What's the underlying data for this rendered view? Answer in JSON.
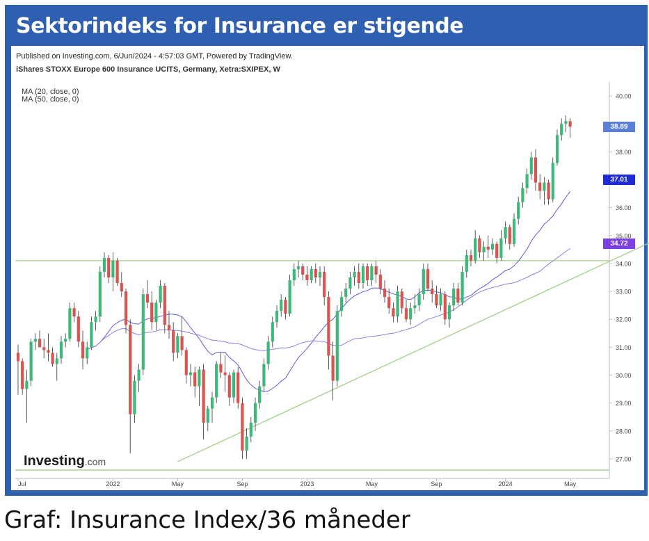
{
  "header": {
    "title": "Sektorindeks for Insurance er stigende"
  },
  "meta": {
    "published": "Published on Investing.com, 6/Jun/2024 - 4:57:03 GMT, Powered by TradingView.",
    "instrument": "iShares STOXX Europe 600 Insurance UCITS, Germany, Xetra:SXIPEX, W",
    "ma20": "MA (20, close, 0)",
    "ma50": "MA (50, close, 0)"
  },
  "price_tags": {
    "last": "38.89",
    "ma20": "37.01",
    "ma50": "34.72",
    "last_color": "#5b7fd6",
    "ma20_color": "#1f2bd6",
    "ma50_color": "#7b3fe4"
  },
  "logo": {
    "brand": "Investing",
    "suffix": ".com"
  },
  "caption": "Graf: Insurance Index/36 måneder",
  "chart_data": {
    "type": "candlestick",
    "title": "",
    "ylim": [
      26.3,
      40.5
    ],
    "y_ticks": [
      "40.00",
      "39.00",
      "38.00",
      "37.00",
      "36.00",
      "35.00",
      "34.00",
      "33.00",
      "32.00",
      "31.00",
      "30.00",
      "29.00",
      "28.00",
      "27.00"
    ],
    "x_ticks": [
      "Jul",
      "2022",
      "May",
      "Sep",
      "2023",
      "May",
      "Sep",
      "2024",
      "May"
    ],
    "colors": {
      "up": "#3cb878",
      "down": "#d9534f",
      "ma20": "#5b5fd6",
      "ma50": "#8a7fe0",
      "trend": "#9fcf8a"
    },
    "horizontal_levels": [
      34.1,
      26.6
    ],
    "trendline": {
      "from": [
        37,
        26.9
      ],
      "to": [
        157,
        35.5
      ]
    },
    "candles": [
      [
        30.8,
        31.1,
        29.3,
        30.5
      ],
      [
        30.5,
        30.6,
        29.3,
        29.5
      ],
      [
        29.5,
        30.2,
        28.3,
        29.8
      ],
      [
        29.8,
        31.3,
        29.6,
        31.2
      ],
      [
        31.2,
        31.5,
        30.9,
        31.3
      ],
      [
        31.3,
        31.6,
        31.0,
        31.0
      ],
      [
        31.0,
        31.3,
        30.6,
        30.9
      ],
      [
        30.9,
        31.5,
        30.5,
        30.8
      ],
      [
        30.8,
        31.0,
        30.3,
        30.4
      ],
      [
        30.4,
        30.8,
        29.8,
        30.6
      ],
      [
        30.6,
        31.4,
        30.4,
        31.2
      ],
      [
        31.2,
        31.5,
        31.0,
        31.3
      ],
      [
        31.3,
        32.6,
        31.2,
        32.4
      ],
      [
        32.4,
        32.6,
        31.9,
        32.1
      ],
      [
        32.1,
        32.3,
        31.0,
        31.2
      ],
      [
        31.2,
        31.6,
        30.2,
        30.6
      ],
      [
        30.6,
        31.2,
        30.4,
        31.0
      ],
      [
        31.0,
        32.1,
        30.9,
        31.9
      ],
      [
        31.9,
        32.3,
        31.6,
        32.1
      ],
      [
        32.1,
        33.9,
        31.9,
        33.7
      ],
      [
        33.7,
        34.4,
        33.5,
        34.2
      ],
      [
        34.2,
        34.3,
        33.3,
        33.5
      ],
      [
        33.5,
        34.4,
        33.0,
        34.1
      ],
      [
        34.1,
        34.2,
        33.2,
        33.3
      ],
      [
        33.3,
        33.7,
        32.8,
        33.0
      ],
      [
        33.0,
        33.1,
        31.5,
        31.8
      ],
      [
        31.8,
        32.0,
        27.2,
        28.6
      ],
      [
        28.6,
        30.0,
        28.3,
        29.8
      ],
      [
        29.8,
        30.4,
        29.4,
        30.2
      ],
      [
        30.2,
        33.1,
        30.0,
        32.9
      ],
      [
        32.9,
        33.4,
        32.4,
        32.6
      ],
      [
        32.6,
        33.0,
        31.6,
        31.9
      ],
      [
        31.9,
        32.7,
        31.6,
        32.6
      ],
      [
        32.6,
        33.4,
        32.4,
        33.2
      ],
      [
        33.2,
        33.3,
        31.5,
        31.8
      ],
      [
        31.8,
        32.3,
        31.3,
        31.6
      ],
      [
        31.6,
        31.9,
        30.5,
        30.8
      ],
      [
        30.8,
        31.5,
        30.6,
        31.4
      ],
      [
        31.4,
        32.1,
        30.7,
        30.9
      ],
      [
        30.9,
        31.0,
        29.7,
        30.0
      ],
      [
        30.0,
        30.4,
        29.6,
        30.1
      ],
      [
        30.1,
        30.3,
        29.2,
        29.6
      ],
      [
        29.6,
        30.3,
        28.9,
        30.2
      ],
      [
        30.2,
        30.4,
        27.7,
        28.3
      ],
      [
        28.3,
        28.9,
        28.0,
        28.8
      ],
      [
        28.8,
        29.4,
        28.3,
        29.2
      ],
      [
        29.2,
        30.5,
        29.0,
        30.4
      ],
      [
        30.4,
        30.8,
        29.9,
        30.1
      ],
      [
        30.1,
        30.7,
        29.4,
        30.0
      ],
      [
        30.0,
        30.1,
        28.9,
        29.2
      ],
      [
        29.2,
        30.2,
        29.0,
        30.1
      ],
      [
        30.1,
        30.3,
        28.8,
        29.0
      ],
      [
        29.0,
        29.2,
        27.0,
        27.3
      ],
      [
        27.3,
        28.1,
        27.0,
        27.8
      ],
      [
        27.8,
        28.5,
        27.6,
        28.3
      ],
      [
        28.3,
        29.2,
        28.0,
        29.0
      ],
      [
        29.0,
        29.8,
        28.8,
        29.6
      ],
      [
        29.6,
        30.6,
        29.4,
        30.4
      ],
      [
        30.4,
        31.4,
        30.2,
        31.2
      ],
      [
        31.2,
        32.1,
        31.0,
        31.9
      ],
      [
        31.9,
        32.5,
        31.7,
        32.3
      ],
      [
        32.3,
        32.9,
        32.1,
        32.7
      ],
      [
        32.7,
        32.8,
        32.0,
        32.2
      ],
      [
        32.2,
        33.6,
        32.1,
        33.4
      ],
      [
        33.4,
        34.0,
        33.2,
        33.8
      ],
      [
        33.8,
        34.1,
        33.5,
        33.9
      ],
      [
        33.9,
        34.0,
        33.4,
        33.6
      ],
      [
        33.6,
        33.9,
        33.2,
        33.4
      ],
      [
        33.4,
        33.9,
        33.3,
        33.8
      ],
      [
        33.8,
        34.0,
        33.3,
        33.5
      ],
      [
        33.5,
        33.9,
        33.2,
        33.7
      ],
      [
        33.7,
        33.9,
        32.5,
        32.8
      ],
      [
        32.8,
        33.0,
        30.2,
        30.7
      ],
      [
        30.7,
        31.2,
        29.1,
        29.8
      ],
      [
        29.8,
        32.5,
        29.6,
        32.3
      ],
      [
        32.3,
        33.0,
        32.1,
        32.8
      ],
      [
        32.8,
        33.3,
        32.6,
        33.1
      ],
      [
        33.1,
        33.7,
        32.9,
        33.5
      ],
      [
        33.5,
        33.9,
        33.2,
        33.7
      ],
      [
        33.7,
        34.0,
        33.1,
        33.3
      ],
      [
        33.3,
        34.0,
        33.1,
        33.9
      ],
      [
        33.9,
        34.0,
        33.2,
        33.4
      ],
      [
        33.4,
        34.0,
        33.2,
        33.9
      ],
      [
        33.9,
        34.1,
        33.3,
        33.6
      ],
      [
        33.6,
        33.8,
        32.9,
        33.1
      ],
      [
        33.1,
        33.4,
        32.6,
        32.8
      ],
      [
        32.8,
        33.1,
        32.2,
        32.4
      ],
      [
        32.4,
        32.6,
        31.9,
        32.1
      ],
      [
        32.1,
        33.2,
        31.9,
        33.0
      ],
      [
        33.0,
        33.1,
        32.2,
        32.4
      ],
      [
        32.4,
        32.7,
        31.9,
        32.0
      ],
      [
        32.0,
        32.6,
        31.8,
        32.4
      ],
      [
        32.4,
        32.9,
        32.2,
        32.5
      ],
      [
        32.5,
        33.1,
        32.3,
        32.9
      ],
      [
        32.9,
        34.0,
        32.7,
        33.8
      ],
      [
        33.8,
        34.0,
        33.0,
        33.1
      ],
      [
        33.1,
        33.4,
        32.6,
        32.9
      ],
      [
        32.9,
        33.2,
        32.4,
        32.5
      ],
      [
        32.5,
        33.1,
        32.3,
        32.9
      ],
      [
        32.9,
        33.0,
        31.8,
        32.0
      ],
      [
        32.0,
        32.6,
        31.7,
        32.5
      ],
      [
        32.5,
        33.3,
        32.3,
        33.1
      ],
      [
        33.1,
        33.3,
        32.5,
        32.6
      ],
      [
        32.6,
        33.9,
        32.5,
        33.7
      ],
      [
        33.7,
        34.5,
        33.5,
        34.3
      ],
      [
        34.3,
        34.5,
        33.9,
        34.1
      ],
      [
        34.1,
        35.2,
        34.0,
        34.9
      ],
      [
        34.9,
        35.0,
        34.2,
        34.4
      ],
      [
        34.4,
        34.8,
        34.1,
        34.6
      ],
      [
        34.6,
        35.0,
        34.2,
        34.5
      ],
      [
        34.5,
        34.9,
        34.3,
        34.7
      ],
      [
        34.7,
        34.8,
        34.0,
        34.2
      ],
      [
        34.2,
        35.2,
        34.1,
        34.9
      ],
      [
        34.9,
        35.5,
        34.7,
        35.3
      ],
      [
        35.3,
        35.4,
        34.5,
        34.7
      ],
      [
        34.7,
        35.8,
        34.6,
        35.6
      ],
      [
        35.6,
        36.4,
        35.4,
        36.2
      ],
      [
        36.2,
        36.9,
        36.0,
        36.7
      ],
      [
        36.7,
        37.4,
        36.5,
        37.2
      ],
      [
        37.2,
        38.0,
        37.0,
        37.8
      ],
      [
        37.8,
        38.1,
        36.6,
        36.9
      ],
      [
        36.9,
        37.2,
        36.3,
        36.6
      ],
      [
        36.6,
        37.1,
        36.1,
        36.9
      ],
      [
        36.9,
        37.0,
        36.1,
        36.3
      ],
      [
        36.3,
        37.8,
        36.2,
        37.6
      ],
      [
        37.6,
        38.8,
        37.5,
        38.6
      ],
      [
        38.6,
        39.2,
        38.4,
        39.0
      ],
      [
        39.0,
        39.3,
        38.7,
        39.1
      ],
      [
        39.1,
        39.2,
        38.5,
        38.9
      ]
    ]
  }
}
